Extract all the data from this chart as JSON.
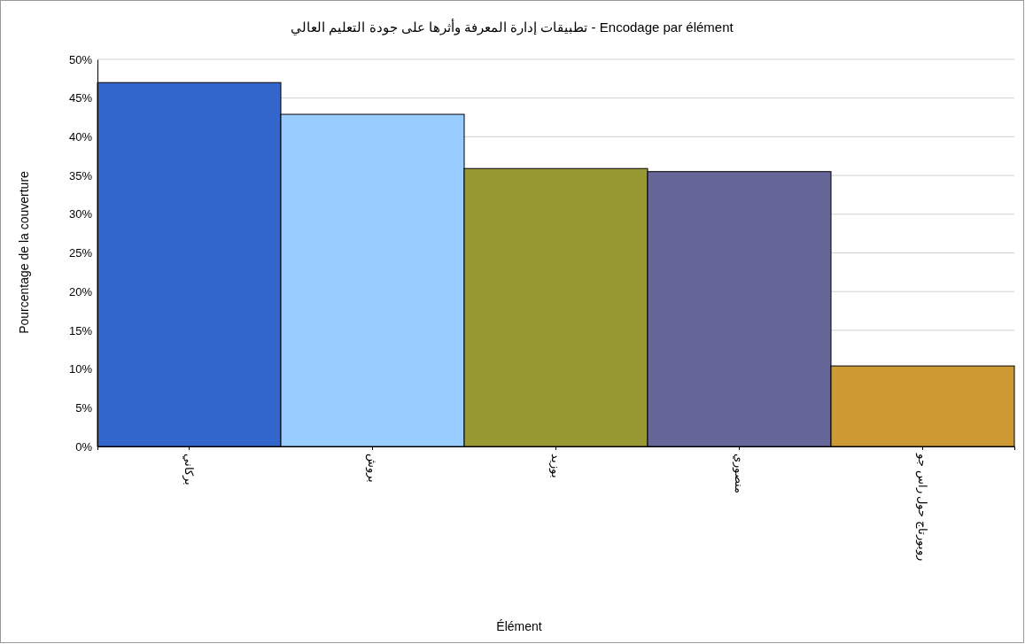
{
  "chart_data": {
    "type": "bar",
    "title": "Encodage par élément - تطبيقات إدارة المعرفة وأثرها على جودة التعليم العالي",
    "xlabel": "Élément",
    "ylabel": "Pourcentage de la couverture",
    "categories": [
      "بركاني",
      "بروش",
      "بوزيد",
      "منصوري",
      "روبورتاج حول راس جو"
    ],
    "values": [
      47.0,
      42.9,
      35.9,
      35.5,
      10.4
    ],
    "colors": [
      "#3366cc",
      "#99ccff",
      "#999933",
      "#666699",
      "#cc9933"
    ],
    "ylim": [
      0,
      50
    ],
    "yticks": [
      {
        "value": 0,
        "label": "0%"
      },
      {
        "value": 5,
        "label": "5%"
      },
      {
        "value": 10,
        "label": "10%"
      },
      {
        "value": 15,
        "label": "15%"
      },
      {
        "value": 20,
        "label": "20%"
      },
      {
        "value": 25,
        "label": "25%"
      },
      {
        "value": 30,
        "label": "30%"
      },
      {
        "value": 35,
        "label": "35%"
      },
      {
        "value": 40,
        "label": "40%"
      },
      {
        "value": 45,
        "label": "45%"
      },
      {
        "value": 50,
        "label": "50%"
      }
    ],
    "grid": "y"
  }
}
